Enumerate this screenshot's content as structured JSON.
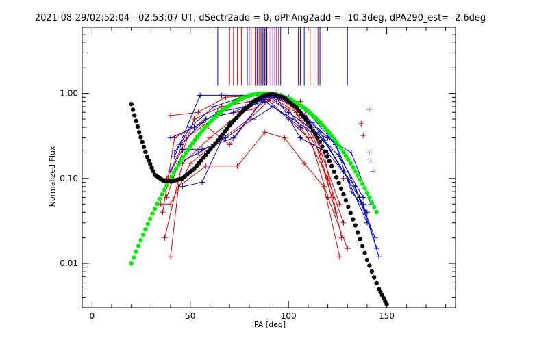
{
  "chart_data": {
    "type": "scatter",
    "title": "2021-08-29/02:52:04 - 02:53:07 UT, dSectr2add = 0, dPhAng2add = -10.3deg, dPA290_est= -2.6deg",
    "xlabel": "PA [deg]",
    "ylabel": "Normalized Flux",
    "xlim": [
      -5,
      185
    ],
    "ylim": [
      0.003,
      6.0
    ],
    "yscale": "log",
    "grid": false,
    "x_ticks": [
      0,
      50,
      100,
      150
    ],
    "x_tick_labels": [
      "0",
      "50",
      "100",
      "150"
    ],
    "y_ticks": [
      0.01,
      0.1,
      1.0
    ],
    "y_tick_labels": [
      "0.01",
      "0.10",
      "1.00"
    ],
    "colors": {
      "red": "#dd0000",
      "blue": "#0000dd",
      "green": "#00ee00",
      "black": "#000000"
    },
    "series": [
      {
        "color": "#dd0000",
        "marker": "plus",
        "vertical_lines_x": [
          70,
          72,
          74,
          76,
          81,
          83,
          85,
          86,
          87,
          88,
          89,
          90,
          91,
          93,
          95,
          105,
          111,
          115
        ],
        "lines": [
          {
            "x": [
              36,
              42,
              56,
              70,
              88,
              100,
              110,
              120,
              128
            ],
            "y": [
              0.04,
              0.3,
              0.45,
              0.25,
              0.9,
              0.5,
              0.3,
              0.1,
              0.03
            ]
          },
          {
            "x": [
              37,
              46,
              60,
              76,
              90,
              104,
              113,
              122
            ],
            "y": [
              0.02,
              0.15,
              0.3,
              0.6,
              0.95,
              0.6,
              0.3,
              0.06
            ]
          },
          {
            "x": [
              38,
              52,
              66,
              80,
              90,
              102,
              116,
              124
            ],
            "y": [
              0.06,
              0.5,
              0.7,
              0.8,
              0.98,
              0.7,
              0.2,
              0.04
            ]
          },
          {
            "x": [
              40,
              44,
              58,
              74,
              88,
              98,
              108,
              118,
              126
            ],
            "y": [
              0.012,
              0.08,
              0.14,
              0.14,
              0.35,
              0.3,
              0.15,
              0.08,
              0.012
            ]
          },
          {
            "x": [
              35,
              40,
              50,
              62,
              80,
              92,
              106,
              112,
              126
            ],
            "y": [
              0.05,
              0.05,
              0.15,
              0.25,
              0.5,
              0.9,
              0.8,
              0.4,
              0.05
            ]
          },
          {
            "x": [
              38,
              48,
              64,
              82,
              90,
              100,
              112,
              120,
              130
            ],
            "y": [
              0.1,
              0.3,
              0.55,
              0.65,
              0.85,
              0.65,
              0.25,
              0.06,
              0.015
            ]
          },
          {
            "x": [
              40,
              54,
              68,
              86,
              94,
              108,
              118,
              127
            ],
            "y": [
              0.55,
              0.6,
              0.9,
              0.95,
              1.0,
              0.55,
              0.2,
              0.02
            ]
          }
        ],
        "isolated_points": [
          {
            "x": 137,
            "y": 0.44
          },
          {
            "x": 138,
            "y": 0.32
          },
          {
            "x": 128,
            "y": 0.1
          }
        ]
      },
      {
        "color": "#0000dd",
        "marker": "plus",
        "vertical_lines_x": [
          64,
          79,
          80,
          84,
          86,
          87,
          88,
          89,
          91,
          92,
          94,
          96,
          106,
          108,
          113,
          116,
          130
        ],
        "lines": [
          {
            "x": [
              40,
              46,
              56,
              72,
              88,
              100,
              112,
              124,
              132,
              140
            ],
            "y": [
              0.12,
              0.22,
              0.22,
              0.3,
              0.9,
              0.9,
              0.45,
              0.25,
              0.07,
              0.04
            ]
          },
          {
            "x": [
              42,
              50,
              62,
              76,
              90,
              104,
              116,
              128,
              138,
              146
            ],
            "y": [
              0.2,
              0.4,
              0.7,
              0.9,
              0.98,
              0.7,
              0.35,
              0.12,
              0.05,
              0.012
            ]
          },
          {
            "x": [
              44,
              54,
              68,
              82,
              92,
              106,
              120,
              132,
              142
            ],
            "y": [
              0.15,
              0.2,
              0.3,
              0.5,
              0.7,
              0.4,
              0.3,
              0.2,
              0.05
            ]
          },
          {
            "x": [
              46,
              56,
              70,
              86,
              96,
              110,
              124,
              136,
              144
            ],
            "y": [
              0.08,
              0.09,
              0.45,
              0.85,
              0.95,
              0.6,
              0.25,
              0.06,
              0.02
            ]
          },
          {
            "x": [
              40,
              52,
              64,
              78,
              88,
              102,
              118,
              130,
              140
            ],
            "y": [
              0.3,
              0.4,
              0.6,
              0.7,
              0.8,
              0.5,
              0.28,
              0.1,
              0.03
            ]
          },
          {
            "x": [
              45,
              58,
              72,
              84,
              94,
              106,
              120,
              134,
              145
            ],
            "y": [
              0.25,
              0.5,
              0.6,
              0.8,
              0.9,
              0.3,
              0.2,
              0.08,
              0.015
            ]
          },
          {
            "x": [
              42,
              55,
              66,
              80,
              90,
              100,
              114,
              126,
              138
            ],
            "y": [
              0.18,
              0.95,
              0.95,
              0.95,
              0.95,
              0.6,
              0.35,
              0.18,
              0.06
            ]
          }
        ],
        "isolated_points": [
          {
            "x": 141,
            "y": 0.65
          },
          {
            "x": 141,
            "y": 0.2
          },
          {
            "x": 142,
            "y": 0.16
          },
          {
            "x": 143,
            "y": 0.12
          }
        ]
      },
      {
        "color": "#00ee00",
        "marker": "filled-circle",
        "fit": "gaussian-log",
        "x_range": [
          20,
          145
        ],
        "peak_x": 88,
        "peak_y": 1.0,
        "y_at_x0": 0.01
      },
      {
        "color": "#000000",
        "marker": "filled-circle",
        "fit": "model-curve",
        "points": [
          {
            "x": 20,
            "y": 0.75
          },
          {
            "x": 24,
            "y": 0.35
          },
          {
            "x": 28,
            "y": 0.18
          },
          {
            "x": 32,
            "y": 0.11
          },
          {
            "x": 36,
            "y": 0.095
          },
          {
            "x": 40,
            "y": 0.092
          },
          {
            "x": 46,
            "y": 0.1
          },
          {
            "x": 52,
            "y": 0.13
          },
          {
            "x": 58,
            "y": 0.19
          },
          {
            "x": 64,
            "y": 0.28
          },
          {
            "x": 70,
            "y": 0.42
          },
          {
            "x": 76,
            "y": 0.6
          },
          {
            "x": 82,
            "y": 0.8
          },
          {
            "x": 88,
            "y": 0.95
          },
          {
            "x": 92,
            "y": 0.98
          },
          {
            "x": 98,
            "y": 0.88
          },
          {
            "x": 104,
            "y": 0.68
          },
          {
            "x": 110,
            "y": 0.45
          },
          {
            "x": 116,
            "y": 0.27
          },
          {
            "x": 122,
            "y": 0.14
          },
          {
            "x": 128,
            "y": 0.065
          },
          {
            "x": 134,
            "y": 0.028
          },
          {
            "x": 140,
            "y": 0.011
          },
          {
            "x": 146,
            "y": 0.005
          },
          {
            "x": 150,
            "y": 0.0033
          }
        ]
      }
    ]
  }
}
